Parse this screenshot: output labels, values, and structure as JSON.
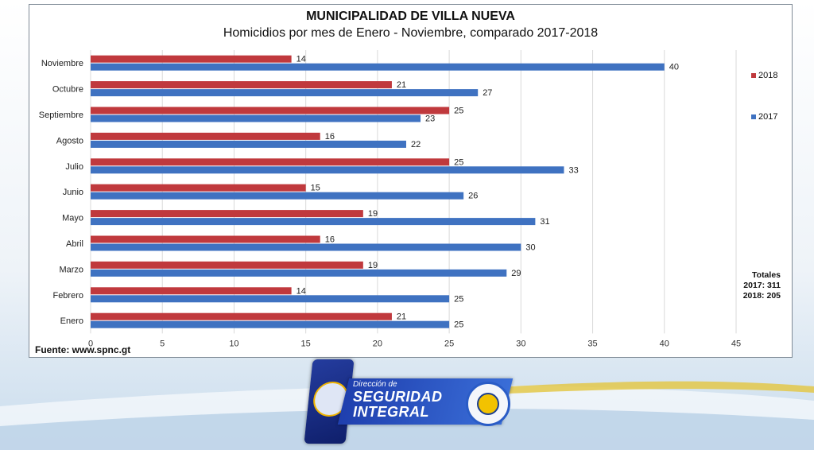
{
  "chart_data": {
    "type": "bar",
    "orientation": "horizontal",
    "title": "MUNICIPALIDAD  DE VILLA NUEVA",
    "subtitle": "Homicidios por mes de Enero - Noviembre, comparado 2017-2018",
    "categories": [
      "Noviembre",
      "Octubre",
      "Septiembre",
      "Agosto",
      "Julio",
      "Junio",
      "Mayo",
      "Abril",
      "Marzo",
      "Febrero",
      "Enero"
    ],
    "series": [
      {
        "name": "2018",
        "color": "#c0393d",
        "values": [
          14,
          21,
          25,
          16,
          25,
          15,
          19,
          16,
          19,
          14,
          21
        ]
      },
      {
        "name": "2017",
        "color": "#3f72c1",
        "values": [
          40,
          27,
          23,
          22,
          33,
          26,
          31,
          30,
          29,
          25,
          25
        ]
      }
    ],
    "xlim": [
      0,
      45
    ],
    "xticks": [
      0,
      5,
      10,
      15,
      20,
      25,
      30,
      35,
      40,
      45
    ],
    "grid": true,
    "legend_position": "right"
  },
  "totals": {
    "heading": "Totales",
    "line_2017": "2017: 311",
    "line_2018": "2018: 205"
  },
  "source": "Fuente: www.spnc.gt",
  "logo": {
    "small": "Dirección de",
    "line1": "SEGURIDAD",
    "line2": "INTEGRAL"
  }
}
